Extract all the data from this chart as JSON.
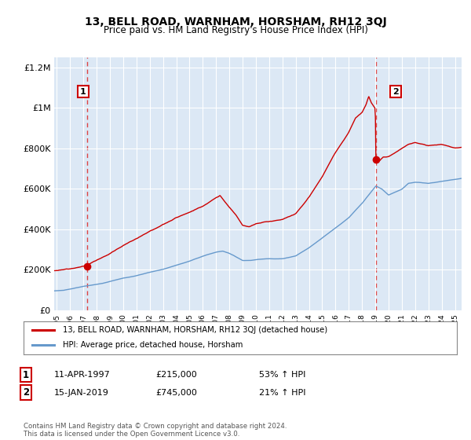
{
  "title": "13, BELL ROAD, WARNHAM, HORSHAM, RH12 3QJ",
  "subtitle": "Price paid vs. HM Land Registry's House Price Index (HPI)",
  "legend_line1": "13, BELL ROAD, WARNHAM, HORSHAM, RH12 3QJ (detached house)",
  "legend_line2": "HPI: Average price, detached house, Horsham",
  "sale1_date": "11-APR-1997",
  "sale1_price": "£215,000",
  "sale1_hpi": "53% ↑ HPI",
  "sale1_year": 1997.28,
  "sale1_value": 215000,
  "sale2_date": "15-JAN-2019",
  "sale2_price": "£745,000",
  "sale2_hpi": "21% ↑ HPI",
  "sale2_year": 2019.04,
  "sale2_value": 745000,
  "ylim": [
    0,
    1250000
  ],
  "xlim_start": 1994.8,
  "xlim_end": 2025.5,
  "yticks": [
    0,
    200000,
    400000,
    600000,
    800000,
    1000000,
    1200000
  ],
  "ytick_labels": [
    "£0",
    "£200K",
    "£400K",
    "£600K",
    "£800K",
    "£1M",
    "£1.2M"
  ],
  "xtick_years": [
    1995,
    1996,
    1997,
    1998,
    1999,
    2000,
    2001,
    2002,
    2003,
    2004,
    2005,
    2006,
    2007,
    2008,
    2009,
    2010,
    2011,
    2012,
    2013,
    2014,
    2015,
    2016,
    2017,
    2018,
    2019,
    2020,
    2021,
    2022,
    2023,
    2024,
    2025
  ],
  "line_color_red": "#cc0000",
  "line_color_blue": "#6699cc",
  "dot_color_red": "#cc0000",
  "vline_color": "#dd4444",
  "bg_color": "#dce8f5",
  "grid_color": "#ffffff",
  "copyright": "Contains HM Land Registry data © Crown copyright and database right 2024.\nThis data is licensed under the Open Government Licence v3.0.",
  "hpi_anchors_x": [
    1994.8,
    1995.5,
    1997.0,
    1998.5,
    2000,
    2001,
    2002,
    2003,
    2004,
    2005,
    2006,
    2007,
    2007.5,
    2008,
    2009.0,
    2009.5,
    2010,
    2011,
    2012,
    2013,
    2014,
    2015,
    2016,
    2017,
    2018,
    2019.04,
    2019.5,
    2020,
    2021,
    2021.5,
    2022,
    2023,
    2024,
    2025,
    2025.5
  ],
  "hpi_anchors_y": [
    92000,
    95000,
    115000,
    130000,
    155000,
    168000,
    185000,
    200000,
    220000,
    240000,
    265000,
    285000,
    290000,
    280000,
    245000,
    245000,
    250000,
    255000,
    255000,
    270000,
    310000,
    360000,
    410000,
    460000,
    530000,
    615000,
    600000,
    570000,
    600000,
    630000,
    635000,
    630000,
    640000,
    650000,
    655000
  ],
  "red_anchors_x": [
    1994.8,
    1995.5,
    1997.0,
    1997.28,
    1998,
    1999,
    2000,
    2001,
    2002,
    2003,
    2004,
    2005,
    2006,
    2007.0,
    2007.3,
    2008.0,
    2008.5,
    2009.0,
    2009.5,
    2010,
    2011,
    2012,
    2013,
    2014,
    2015,
    2016,
    2017,
    2017.5,
    2018.0,
    2018.3,
    2018.5,
    2018.7,
    2019.0,
    2019.04,
    2019.3,
    2019.6,
    2020,
    2020.5,
    2021,
    2021.5,
    2022,
    2023,
    2024,
    2025,
    2025.5
  ],
  "red_anchors_y": [
    185000,
    190000,
    210000,
    215000,
    240000,
    275000,
    315000,
    350000,
    390000,
    425000,
    460000,
    490000,
    520000,
    560000,
    570000,
    510000,
    470000,
    420000,
    415000,
    430000,
    440000,
    450000,
    480000,
    560000,
    660000,
    780000,
    880000,
    950000,
    980000,
    1020000,
    1060000,
    1030000,
    1000000,
    745000,
    740000,
    760000,
    760000,
    780000,
    800000,
    820000,
    830000,
    810000,
    820000,
    800000,
    800000
  ]
}
